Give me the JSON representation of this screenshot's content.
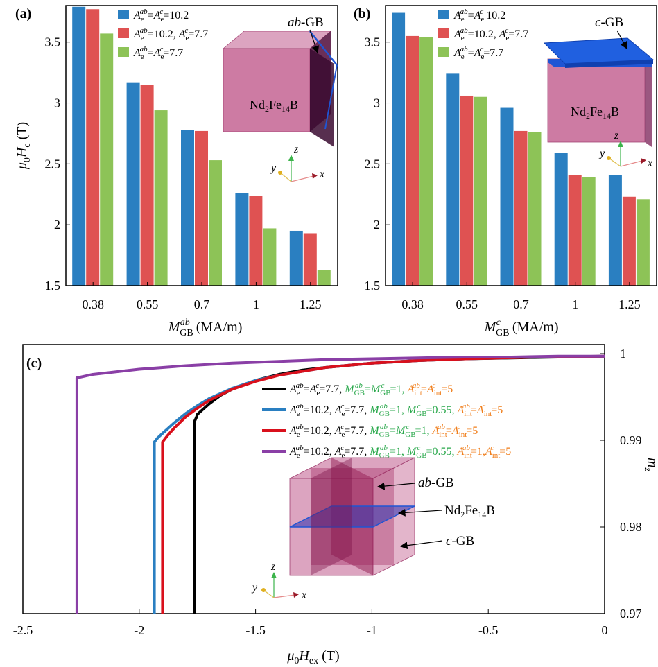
{
  "colors": {
    "blue": "#2a7fc1",
    "red": "#df5252",
    "green": "#8dc357",
    "line_black": "#000000",
    "line_blue": "#2a7fc1",
    "line_red": "#d9101c",
    "line_purple": "#8a3fa6",
    "cube_fill": "#c05a8c",
    "gb_blue": "#1f55d4",
    "text_green": "#29a84b",
    "text_orange": "#f07d1a"
  },
  "panels": {
    "a": {
      "label": "(a)",
      "gb_label": "ab-GB",
      "material": "Nd2Fe14B"
    },
    "b": {
      "label": "(b)",
      "gb_label": "c-GB",
      "material": "Nd2Fe14B"
    },
    "c": {
      "label": "(c)",
      "gb_ab": "ab-GB",
      "gb_c": "c-GB",
      "material": "Nd2Fe14B"
    }
  },
  "axes_icon": {
    "x": "x",
    "y": "y",
    "z": "z"
  },
  "chart_data": [
    {
      "type": "bar",
      "panel": "a",
      "categories": [
        "0.38",
        "0.55",
        "0.7",
        "1",
        "1.25"
      ],
      "xlabel": "M_GB^ab (MA/m)",
      "ylabel": "μ0Hc (T)",
      "ylim": [
        1.5,
        3.8
      ],
      "yticks": [
        1.5,
        2,
        2.5,
        3,
        3.5
      ],
      "legend_position": "top-left",
      "series": [
        {
          "name": "Ae^ab = Ae^c = 10.2",
          "color": "blue",
          "values": [
            3.79,
            3.17,
            2.78,
            2.26,
            1.95
          ]
        },
        {
          "name": "Ae^ab = 10.2, Ae^c = 7.7",
          "color": "red",
          "values": [
            3.77,
            3.15,
            2.77,
            2.24,
            1.93
          ]
        },
        {
          "name": "Ae^ab = Ae^c = 7.7",
          "color": "green",
          "values": [
            3.57,
            2.94,
            2.53,
            1.97,
            1.63
          ]
        }
      ]
    },
    {
      "type": "bar",
      "panel": "b",
      "categories": [
        "0.38",
        "0.55",
        "0.7",
        "1",
        "1.25"
      ],
      "xlabel": "M_GB^c (MA/m)",
      "ylabel": "",
      "ylim": [
        1.5,
        3.8
      ],
      "yticks": [
        1.5,
        2,
        2.5,
        3,
        3.5
      ],
      "legend_position": "top-left",
      "series": [
        {
          "name": "Ae^ab = Ae^c 10.2",
          "color": "blue",
          "values": [
            3.74,
            3.24,
            2.96,
            2.59,
            2.41
          ]
        },
        {
          "name": "Ae^ab = 10.2, Ae^c = 7.7",
          "color": "red",
          "values": [
            3.55,
            3.06,
            2.77,
            2.41,
            2.23
          ]
        },
        {
          "name": "Ae^ab = Ae^c = 7.7",
          "color": "green",
          "values": [
            3.54,
            3.05,
            2.76,
            2.39,
            2.21
          ]
        }
      ]
    },
    {
      "type": "line",
      "panel": "c",
      "xlabel": "μ0Hex (T)",
      "ylabel": "mz",
      "xlim": [
        -2.5,
        0
      ],
      "ylim": [
        0.97,
        1.0
      ],
      "xticks": [
        -2.5,
        -2,
        -1.5,
        -1,
        -0.5,
        0
      ],
      "xtick_labels": [
        "-2.5",
        "-2",
        "-1.5",
        "-1",
        "-0.5",
        "0"
      ],
      "yticks": [
        0.97,
        0.98,
        0.99,
        1.0
      ],
      "ytick_labels": [
        "0.97",
        "0.98",
        "0.99",
        "1"
      ],
      "y_axis_side": "right",
      "legend_position": "top-center",
      "series": [
        {
          "color": "line_black",
          "legend": {
            "a": "Ae^ab = Ae^c = 7.7,",
            "m": "M_GB^ab = M_GB^c = 1,",
            "i": "Aint^ab = Aint^c = 5"
          },
          "x": [
            -1.762,
            -1.762,
            -1.755,
            -1.75,
            -1.7,
            -1.65,
            -1.6,
            -1.5,
            -1.4,
            -1.3,
            -1.2,
            -1.0,
            -0.8,
            -0.6,
            -0.4,
            -0.2,
            0
          ],
          "y": [
            0.97,
            0.9922,
            0.9926,
            0.993,
            0.9942,
            0.9952,
            0.9959,
            0.9969,
            0.9976,
            0.9981,
            0.9984,
            0.9989,
            0.9992,
            0.9994,
            0.9995,
            0.9996,
            0.9997
          ]
        },
        {
          "color": "line_blue",
          "legend": {
            "a": "Ae^ab = 10.2, Ae^c = 7.7,",
            "m": "M_GB^ab = 1, M_GB^c = 0.55,",
            "i": "Aint^ab = Aint^c = 5"
          },
          "x": [
            -1.935,
            -1.935,
            -1.92,
            -1.9,
            -1.85,
            -1.8,
            -1.75,
            -1.7,
            -1.6,
            -1.5,
            -1.4,
            -1.2,
            -1.0,
            -0.8,
            -0.6,
            -0.3,
            0
          ],
          "y": [
            0.97,
            0.9898,
            0.9903,
            0.9908,
            0.992,
            0.9931,
            0.994,
            0.9948,
            0.996,
            0.9969,
            0.9975,
            0.9984,
            0.9989,
            0.9992,
            0.9994,
            0.9996,
            0.9997
          ]
        },
        {
          "color": "line_red",
          "legend": {
            "a": "Ae^ab = 10.2, Ae^c = 7.7,",
            "m": "M_GB^ab = M_GB^c = 1,",
            "i": "Aint^ab = Aint^c = 5"
          },
          "x": [
            -1.9,
            -1.9,
            -1.88,
            -1.85,
            -1.8,
            -1.75,
            -1.7,
            -1.6,
            -1.5,
            -1.4,
            -1.2,
            -1.0,
            -0.8,
            -0.6,
            -0.3,
            0
          ],
          "y": [
            0.97,
            0.9898,
            0.9905,
            0.9914,
            0.9927,
            0.9937,
            0.9946,
            0.9959,
            0.9968,
            0.9975,
            0.9984,
            0.9989,
            0.9992,
            0.9994,
            0.9996,
            0.9997
          ]
        },
        {
          "color": "line_purple",
          "legend": {
            "a": "Ae^ab = 10.2, Ae^c = 7.7,",
            "m": "M_GB^ab = 1, M_GB^c = 0.55,",
            "i": "Aint^ab = 1, Aint^c = 5"
          },
          "x": [
            -2.268,
            -2.268,
            -2.2,
            -2.0,
            -1.8,
            -1.6,
            -1.4,
            -1.2,
            -1.0,
            -0.8,
            -0.6,
            -0.4,
            -0.2,
            0
          ],
          "y": [
            0.97,
            0.9972,
            0.9976,
            0.9982,
            0.9986,
            0.9989,
            0.9991,
            0.9993,
            0.9994,
            0.9995,
            0.9996,
            0.9996,
            0.9997,
            0.9997
          ]
        }
      ]
    }
  ]
}
